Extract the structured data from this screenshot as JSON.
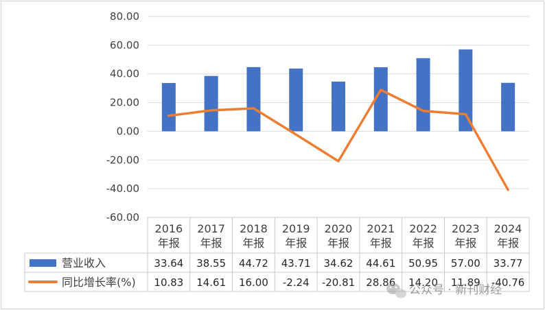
{
  "chart_data": {
    "type": "bar",
    "categories": [
      "2016\n年报",
      "2017\n年报",
      "2018\n年报",
      "2019\n年报",
      "2020\n年报",
      "2021\n年报",
      "2022\n年报",
      "2023\n年报",
      "2024\n年报"
    ],
    "ylim": [
      -60,
      80
    ],
    "yticks": [
      "80.00",
      "60.00",
      "40.00",
      "20.00",
      "0.00",
      "-20.00",
      "-40.00",
      "-60.00"
    ],
    "grid": true,
    "legend": "data-table",
    "series": [
      {
        "name": "营业收入",
        "type": "bar",
        "color": "#4472C4",
        "values": [
          33.64,
          38.55,
          44.72,
          43.71,
          34.62,
          44.61,
          50.95,
          57.0,
          33.77
        ],
        "labels": [
          "33.64",
          "38.55",
          "44.72",
          "43.71",
          "34.62",
          "44.61",
          "50.95",
          "57.00",
          "33.77"
        ]
      },
      {
        "name": "同比增长率(%)",
        "type": "line",
        "color": "#ED7D31",
        "values": [
          10.83,
          14.61,
          16.0,
          -2.24,
          -20.81,
          28.86,
          14.2,
          11.89,
          -40.76
        ],
        "labels": [
          "10.83",
          "14.61",
          "16.00",
          "-2.24",
          "-20.81",
          "28.86",
          "14.20",
          "11.89",
          "-40.76"
        ]
      }
    ]
  },
  "watermark": {
    "icon": "wechat-icon",
    "text": "公众号 · 新刊财经"
  }
}
